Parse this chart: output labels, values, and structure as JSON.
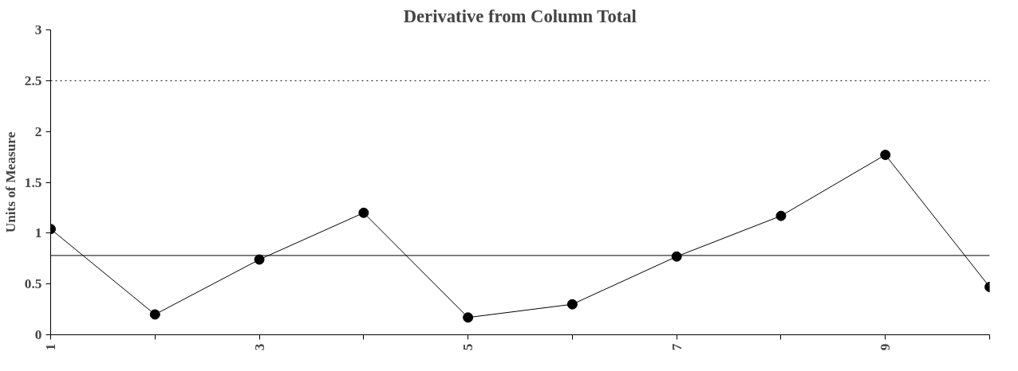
{
  "chart_data": {
    "type": "line",
    "title": "Derivative from Column Total",
    "ylabel": "Units of Measure",
    "x": [
      1,
      2,
      3,
      4,
      5,
      6,
      7,
      8,
      9,
      10
    ],
    "series": [
      {
        "color": "#000000",
        "values": [
          1.04,
          0.2,
          0.74,
          1.2,
          0.17,
          0.3,
          0.77,
          1.17,
          1.77,
          0.47
        ]
      }
    ],
    "xlim": [
      1,
      10
    ],
    "xticks": [
      1,
      {
        "value": 2,
        "label": null
      },
      3,
      {
        "value": 4,
        "label": null
      },
      5,
      {
        "value": 6,
        "label": null
      },
      7,
      {
        "value": 8,
        "label": null
      },
      9,
      {
        "value": 10,
        "label": null
      }
    ],
    "ylim": [
      0,
      3
    ],
    "yticks": [
      0,
      0.5,
      1,
      1.5,
      2,
      2.5,
      3
    ],
    "ref_lines": [
      {
        "axis": "y",
        "value": 2.5,
        "label": null,
        "color": "#000000",
        "line_style": "dotted"
      },
      {
        "axis": "y",
        "value": 0.78,
        "label": null,
        "color": "#000000",
        "line_style": "solid"
      }
    ],
    "marker": "circle",
    "line_style": "solid",
    "grid": false
  }
}
